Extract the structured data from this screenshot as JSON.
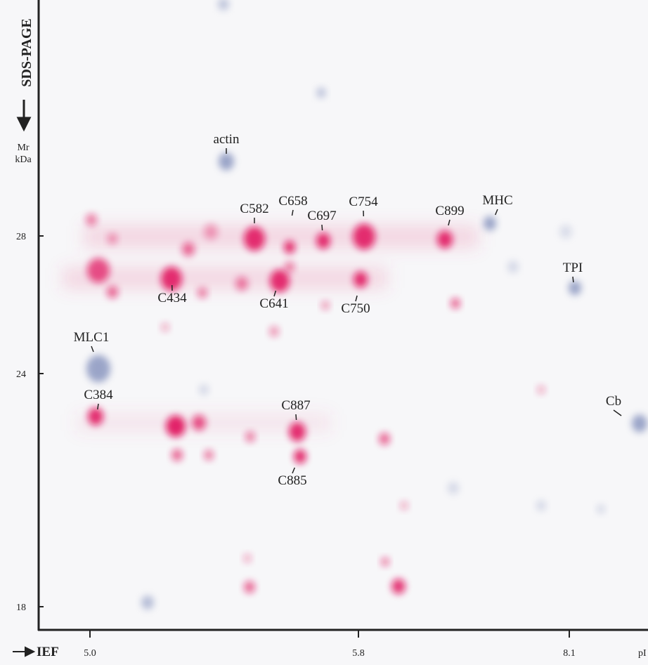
{
  "axis": {
    "y_title": "SDS-PAGE",
    "y_units": [
      "Mr",
      "kDa"
    ],
    "x_title": "IEF",
    "x_end": "pI",
    "y_ticks": [
      "28",
      "24",
      "18"
    ],
    "x_ticks": [
      "5.0",
      "5.8",
      "8.1"
    ]
  },
  "spots": [
    {
      "label": "actin"
    },
    {
      "label": "C582"
    },
    {
      "label": "C658"
    },
    {
      "label": "C697"
    },
    {
      "label": "C754"
    },
    {
      "label": "C899"
    },
    {
      "label": "MHC"
    },
    {
      "label": "TPI"
    },
    {
      "label": "C434"
    },
    {
      "label": "C641"
    },
    {
      "label": "C750"
    },
    {
      "label": "MLC1"
    },
    {
      "label": "C384"
    },
    {
      "label": "C887"
    },
    {
      "label": "C885"
    },
    {
      "label": "Cb"
    }
  ]
}
